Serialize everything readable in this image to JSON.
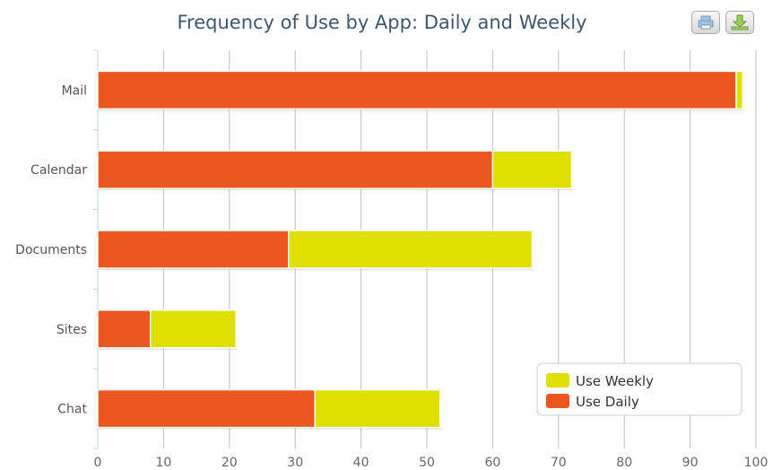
{
  "chart_data": {
    "type": "bar",
    "orientation": "horizontal",
    "stacked": true,
    "title": "Frequency of Use by App: Daily and Weekly",
    "categories": [
      "Mail",
      "Calendar",
      "Documents",
      "Sites",
      "Chat"
    ],
    "series": [
      {
        "name": "Use Weekly",
        "color": "#dde000",
        "values": [
          1,
          12,
          37,
          13,
          19
        ]
      },
      {
        "name": "Use Daily",
        "color": "#eb571e",
        "values": [
          97,
          60,
          29,
          8,
          33
        ]
      }
    ],
    "xlim": [
      0,
      100
    ],
    "xticks": [
      "0",
      "10",
      "20",
      "30",
      "40",
      "50",
      "60",
      "70",
      "80",
      "90",
      "100"
    ],
    "grid": true,
    "legend_position": "bottom-right"
  },
  "toolbar": {
    "print_icon": "printer-icon",
    "download_icon": "download-icon"
  }
}
